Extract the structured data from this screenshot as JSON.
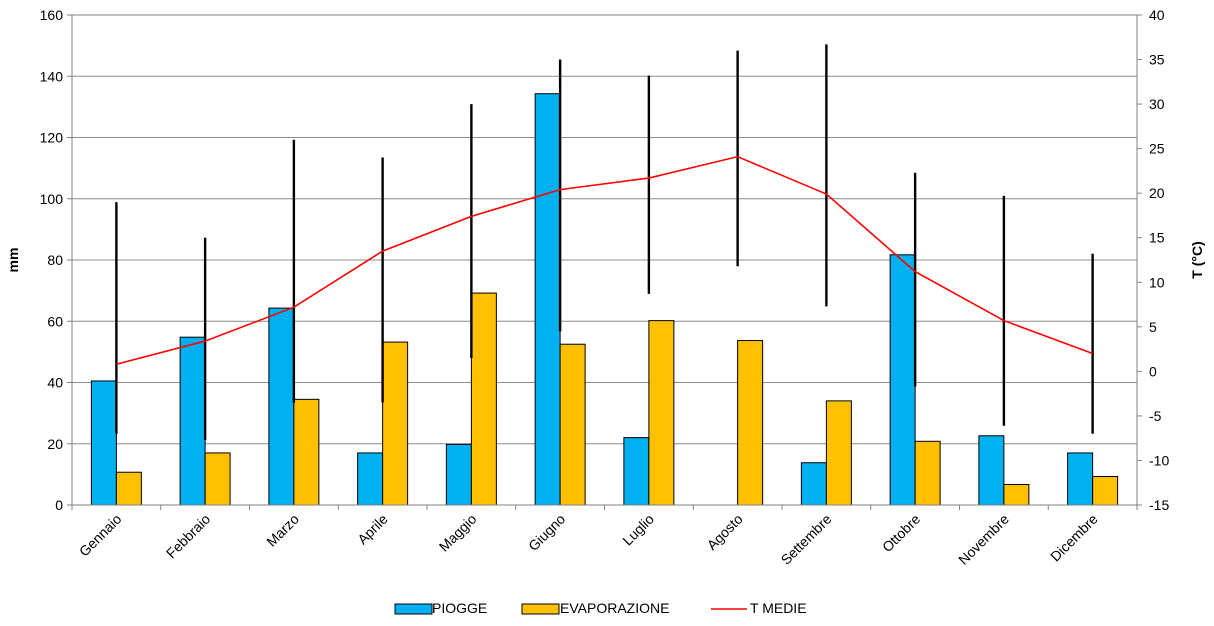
{
  "chart_data": {
    "type": "bar",
    "categories": [
      "Gennaio",
      "Febbraio",
      "Marzo",
      "Aprile",
      "Maggio",
      "Giugno",
      "Luglio",
      "Agosto",
      "Settembre",
      "Ottobre",
      "Novembre",
      "Dicembre"
    ],
    "series": [
      {
        "name": "PIOGGE",
        "type": "bar",
        "axis": "left",
        "color": "#00b0f0",
        "values": [
          40.5,
          54.8,
          64.3,
          17,
          19.8,
          134.3,
          22,
          0,
          13.8,
          81.7,
          22.6,
          17
        ]
      },
      {
        "name": "EVAPORAZIONE",
        "type": "bar",
        "axis": "left",
        "color": "#ffc000",
        "values": [
          10.7,
          17,
          34.5,
          53.2,
          69.2,
          52.5,
          60.2,
          53.7,
          34,
          20.8,
          6.7,
          9.3
        ]
      },
      {
        "name": "T MEDIE",
        "type": "line",
        "axis": "right",
        "color": "#ff0000",
        "values": [
          0.8,
          3.4,
          7.2,
          13.5,
          17.4,
          20.4,
          21.7,
          24.1,
          19.9,
          11.2,
          5.7,
          2
        ]
      }
    ],
    "temperature_range": {
      "color": "#000000",
      "axis": "right",
      "min": [
        -7,
        -7.7,
        -3.5,
        -3.5,
        1.5,
        4.5,
        8.7,
        11.8,
        7.3,
        -1.7,
        -6.1,
        -7
      ],
      "max": [
        19,
        15,
        26,
        24,
        30,
        35,
        33.2,
        36,
        36.7,
        22.3,
        19.7,
        13.2
      ]
    },
    "xlabel": "",
    "ylabel": "mm",
    "y2label": "T (°C)",
    "ylim": [
      0,
      160
    ],
    "y2lim": [
      -15,
      40
    ],
    "yticks": [
      "0",
      "20",
      "40",
      "60",
      "80",
      "100",
      "120",
      "140",
      "160"
    ],
    "y2ticks": [
      "-15",
      "-10",
      "-5",
      "0",
      "5",
      "10",
      "15",
      "20",
      "25",
      "30",
      "35",
      "40"
    ],
    "grid": "horizontal",
    "legend_position": "bottom"
  }
}
